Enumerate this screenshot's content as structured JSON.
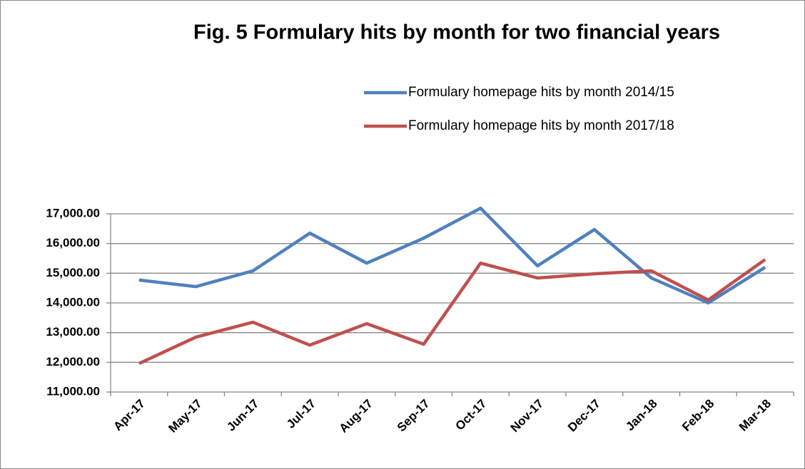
{
  "chart_data": {
    "type": "line",
    "title": "Fig. 5 Formulary hits by month for two financial years",
    "categories": [
      "Apr-17",
      "May-17",
      "Jun-17",
      "Jul-17",
      "Aug-17",
      "Sep-17",
      "Oct-17",
      "Nov-17",
      "Dec-17",
      "Jan-18",
      "Feb-18",
      "Mar-18"
    ],
    "series": [
      {
        "name": "Formulary homepage hits by month 2014/15",
        "color": "#4f81bd",
        "values": [
          14770,
          14550,
          15080,
          16350,
          15340,
          16180,
          17190,
          15250,
          16470,
          14840,
          14000,
          15200
        ]
      },
      {
        "name": "Formulary homepage hits by month 2017/18",
        "color": "#c0504d",
        "values": [
          11960,
          12850,
          13350,
          12580,
          13300,
          12610,
          15340,
          14840,
          14980,
          15080,
          14100,
          15460
        ]
      }
    ],
    "ylim": [
      11000,
      17000
    ],
    "yticks": [
      {
        "value": 11000,
        "label": "11,000.00"
      },
      {
        "value": 12000,
        "label": "12,000.00"
      },
      {
        "value": 13000,
        "label": "13,000.00"
      },
      {
        "value": 14000,
        "label": "14,000.00"
      },
      {
        "value": 15000,
        "label": "15,000.00"
      },
      {
        "value": 16000,
        "label": "16,000.00"
      },
      {
        "value": 17000,
        "label": "17,000.00"
      }
    ],
    "grid": true,
    "legend": "top-right"
  }
}
